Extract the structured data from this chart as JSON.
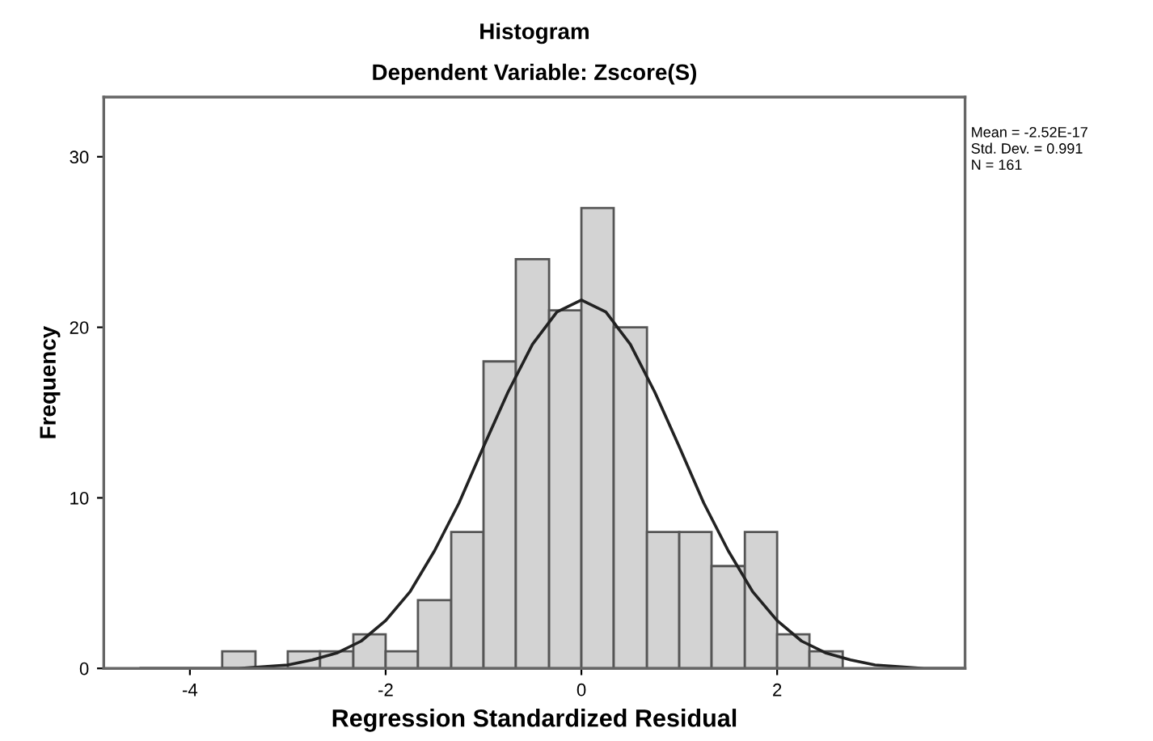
{
  "chart_data": {
    "type": "histogram",
    "title": "Histogram",
    "subtitle": "Dependent Variable: Zscore(S)",
    "xlabel": "Regression Standardized Residual",
    "ylabel": "Frequency",
    "bins": [
      -3.67,
      -3.33,
      -3.0,
      -2.67,
      -2.33,
      -2.0,
      -1.67,
      -1.33,
      -1.0,
      -0.67,
      -0.33,
      0,
      0.33,
      0.67,
      1.0,
      1.33,
      1.67,
      2.0,
      2.33,
      2.67
    ],
    "values": [
      1,
      0,
      1,
      1,
      2,
      1,
      4,
      8,
      18,
      24,
      21,
      27,
      20,
      8,
      8,
      6,
      8,
      2,
      1
    ],
    "color": "#d3d3d3",
    "series": [
      {
        "type": "line",
        "color": "#222222",
        "x": [
          -4.5,
          -4,
          -3.5,
          -3,
          -2.75,
          -2.5,
          -2.25,
          -2,
          -1.75,
          -1.5,
          -1.25,
          -1,
          -0.75,
          -0.5,
          -0.25,
          0,
          0.25,
          0.5,
          0.75,
          1,
          1.25,
          1.5,
          1.75,
          2,
          2.25,
          2.5,
          2.75,
          3,
          3.5,
          3.9
        ],
        "values": [
          0.0,
          0.0,
          0.0,
          0.2,
          0.5,
          0.9,
          1.6,
          2.8,
          4.5,
          6.9,
          9.7,
          13.0,
          16.2,
          19.0,
          20.9,
          21.6,
          20.9,
          19.0,
          16.2,
          13.0,
          9.7,
          6.9,
          4.5,
          2.8,
          1.6,
          0.9,
          0.5,
          0.2,
          0.0,
          0.0
        ]
      }
    ],
    "xlim": [
      -4.88,
      3.92
    ],
    "ylim": [
      0,
      33.5
    ],
    "xticks": [
      -4,
      -2,
      0,
      2
    ],
    "yticks": [
      0,
      10,
      20,
      30
    ],
    "grid": false,
    "legend": false,
    "annotations": [
      "Mean = -2.52E-17",
      "Std. Dev. = 0.991",
      "N = 161"
    ]
  }
}
